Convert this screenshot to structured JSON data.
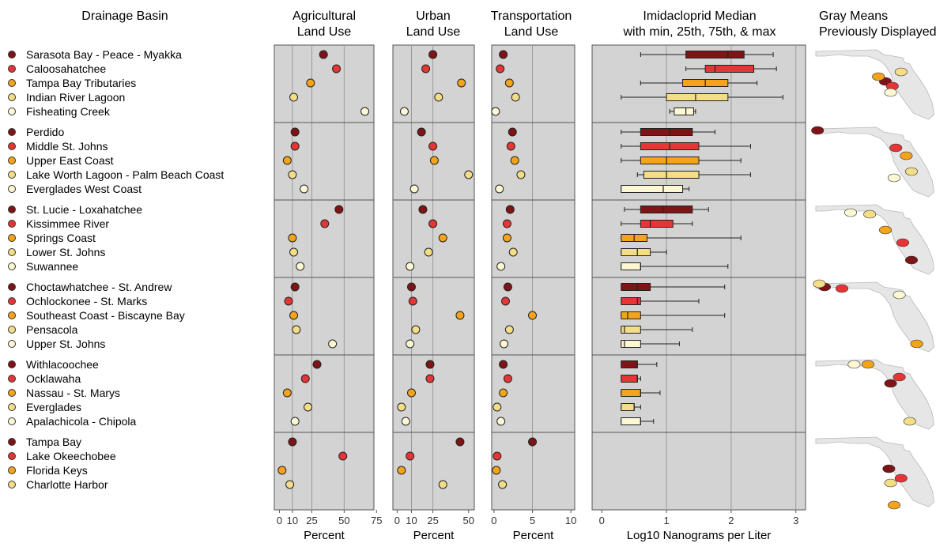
{
  "headers": {
    "basin": "Drainage Basin",
    "ag": [
      "Agricultural",
      "Land Use"
    ],
    "urban": [
      "Urban",
      "Land Use"
    ],
    "trans": [
      "Transportation",
      "Land Use"
    ],
    "imid": [
      "Imidacloprid Median",
      "with min, 25th, 75th, & max"
    ],
    "map": [
      "Gray Means",
      "Previously Displayed"
    ]
  },
  "colors": [
    "#7e1416",
    "#e63535",
    "#f4a41a",
    "#f3dd87",
    "#fdf7d3"
  ],
  "chart_data": {
    "type": "dot-and-boxplot",
    "groups": [
      {
        "basins": [
          "Sarasota Bay - Peace - Myakka",
          "Caloosahatchee",
          "Tampa Bay Tributaries",
          "Indian River Lagoon",
          "Fisheating Creek"
        ],
        "agricultural": [
          34,
          44,
          24,
          11,
          66
        ],
        "urban": [
          25,
          20,
          45,
          29,
          5
        ],
        "transportation": [
          1.2,
          0.8,
          2.0,
          2.8,
          0.2
        ],
        "imidacloprid": [
          [
            0.6,
            1.3,
            1.95,
            2.2,
            2.65
          ],
          [
            1.3,
            1.6,
            1.75,
            2.35,
            2.7
          ],
          [
            0.6,
            1.25,
            1.6,
            1.95,
            2.4
          ],
          [
            0.3,
            1.0,
            1.45,
            1.95,
            2.8
          ],
          [
            1.05,
            1.12,
            1.3,
            1.42,
            1.45
          ]
        ]
      },
      {
        "basins": [
          "Perdido",
          "Middle St. Johns",
          "Upper East Coast",
          "Lake Worth Lagoon - Palm Beach Coast",
          "Everglades West Coast"
        ],
        "agricultural": [
          12,
          12,
          6,
          10,
          19
        ],
        "urban": [
          17,
          25,
          26,
          50,
          12
        ],
        "transportation": [
          2.4,
          2.2,
          2.7,
          3.5,
          0.7
        ],
        "imidacloprid": [
          [
            0.3,
            0.6,
            1.05,
            1.4,
            1.75
          ],
          [
            0.3,
            0.6,
            1.05,
            1.5,
            2.3
          ],
          [
            0.3,
            0.6,
            1.0,
            1.5,
            2.15
          ],
          [
            0.55,
            0.65,
            1.0,
            1.5,
            2.3
          ],
          [
            0.3,
            0.3,
            0.95,
            1.25,
            1.35
          ]
        ]
      },
      {
        "basins": [
          "St. Lucie - Loxahatchee",
          "Kissimmee River",
          "Springs Coast",
          "Lower St. Johns",
          "Suwannee"
        ],
        "agricultural": [
          46,
          35,
          10,
          11,
          16
        ],
        "urban": [
          18,
          25,
          32,
          22,
          9
        ],
        "transportation": [
          2.1,
          1.7,
          1.7,
          2.5,
          0.9
        ],
        "imidacloprid": [
          [
            0.35,
            0.6,
            0.95,
            1.4,
            1.65
          ],
          [
            0.3,
            0.6,
            0.75,
            1.1,
            1.4
          ],
          [
            0.3,
            0.3,
            0.5,
            0.7,
            2.15
          ],
          [
            0.3,
            0.3,
            0.55,
            0.75,
            1.0
          ],
          [
            0.3,
            0.3,
            0.6,
            0.6,
            1.95
          ]
        ]
      },
      {
        "basins": [
          "Choctawhatchee - St. Andrew",
          "Ochlockonee - St. Marks",
          "Southeast Coast - Biscayne Bay",
          "Pensacola",
          "Upper St. Johns"
        ],
        "agricultural": [
          12,
          7,
          11,
          13,
          41
        ],
        "urban": [
          10,
          11,
          44,
          13,
          9
        ],
        "transportation": [
          1.8,
          1.5,
          5.0,
          2.0,
          1.3
        ],
        "imidacloprid": [
          [
            0.3,
            0.3,
            0.55,
            0.75,
            1.9
          ],
          [
            0.3,
            0.3,
            0.55,
            0.6,
            1.5
          ],
          [
            0.3,
            0.3,
            0.4,
            0.6,
            1.9
          ],
          [
            0.3,
            0.3,
            0.35,
            0.6,
            1.4
          ],
          [
            0.3,
            0.3,
            0.35,
            0.6,
            1.2
          ]
        ]
      },
      {
        "basins": [
          "Withlacoochee",
          "Ocklawaha",
          "Nassau - St. Marys",
          "Everglades",
          "Apalachicola - Chipola"
        ],
        "agricultural": [
          29,
          20,
          6,
          22,
          12
        ],
        "urban": [
          23,
          23,
          10,
          3,
          6
        ],
        "transportation": [
          1.2,
          1.8,
          1.2,
          0.4,
          0.9
        ],
        "imidacloprid": [
          [
            0.3,
            0.3,
            0.55,
            0.55,
            0.85
          ],
          [
            0.3,
            0.3,
            0.55,
            0.55,
            0.6
          ],
          [
            0.3,
            0.3,
            0.6,
            0.6,
            0.9
          ],
          [
            0.3,
            0.3,
            0.5,
            0.5,
            0.6
          ],
          [
            0.3,
            0.3,
            0.6,
            0.6,
            0.8
          ]
        ]
      },
      {
        "basins": [
          "Tampa Bay",
          "Lake Okeechobee",
          "Florida Keys",
          "Charlotte Harbor"
        ],
        "agricultural": [
          10,
          49,
          2,
          8
        ],
        "urban": [
          44,
          9,
          3,
          32
        ],
        "transportation": [
          5.0,
          0.4,
          0.3,
          1.1
        ],
        "imidacloprid": null
      }
    ],
    "axes": {
      "agricultural": {
        "range": [
          -4,
          73
        ],
        "ticks": [
          0,
          10,
          25,
          50,
          75
        ],
        "tick_labels": [
          "0",
          "10",
          "25",
          "50",
          "75"
        ],
        "gridlines": [
          10,
          25,
          50
        ],
        "xlabel": "Percent"
      },
      "urban": {
        "range": [
          -3,
          54
        ],
        "ticks": [
          0,
          10,
          25,
          50
        ],
        "tick_labels": [
          "0",
          "10",
          "25",
          "50"
        ],
        "gridlines": [
          10,
          25
        ],
        "xlabel": "Percent"
      },
      "transportation": {
        "range": [
          -0.3,
          10.5
        ],
        "ticks": [
          0,
          5,
          10
        ],
        "tick_labels": [
          "0",
          "5",
          "10"
        ],
        "gridlines": [
          5
        ],
        "xlabel": "Percent"
      },
      "imidacloprid": {
        "range": [
          -0.15,
          3.15
        ],
        "ticks": [
          0,
          1,
          2,
          3
        ],
        "tick_labels": [
          "0",
          "1",
          "2",
          "3"
        ],
        "gridlines": [
          1,
          2,
          3
        ],
        "xlabel": "Log10 Nanograms per Liter"
      }
    },
    "grid": true,
    "map_highlights": [
      [
        "Sarasota Bay - Peace - Myakka",
        "Caloosahatchee",
        "Tampa Bay Tributaries",
        "Indian River Lagoon",
        "Fisheating Creek"
      ],
      [
        "Perdido",
        "Middle St. Johns",
        "Upper East Coast",
        "Lake Worth Lagoon - Palm Beach Coast",
        "Everglades West Coast"
      ],
      [
        "St. Lucie - Loxahatchee",
        "Kissimmee River",
        "Springs Coast",
        "Lower St. Johns",
        "Suwannee"
      ],
      [
        "Choctawhatchee - St. Andrew",
        "Ochlockonee - St. Marks",
        "Southeast Coast - Biscayne Bay",
        "Pensacola",
        "Upper St. Johns"
      ],
      [
        "Withlacoochee",
        "Ocklawaha",
        "Nassau - St. Marys",
        "Everglades",
        "Apalachicola - Chipola"
      ],
      [
        "Tampa Bay",
        "Lake Okeechobee",
        "Florida Keys",
        "Charlotte Harbor"
      ]
    ]
  }
}
